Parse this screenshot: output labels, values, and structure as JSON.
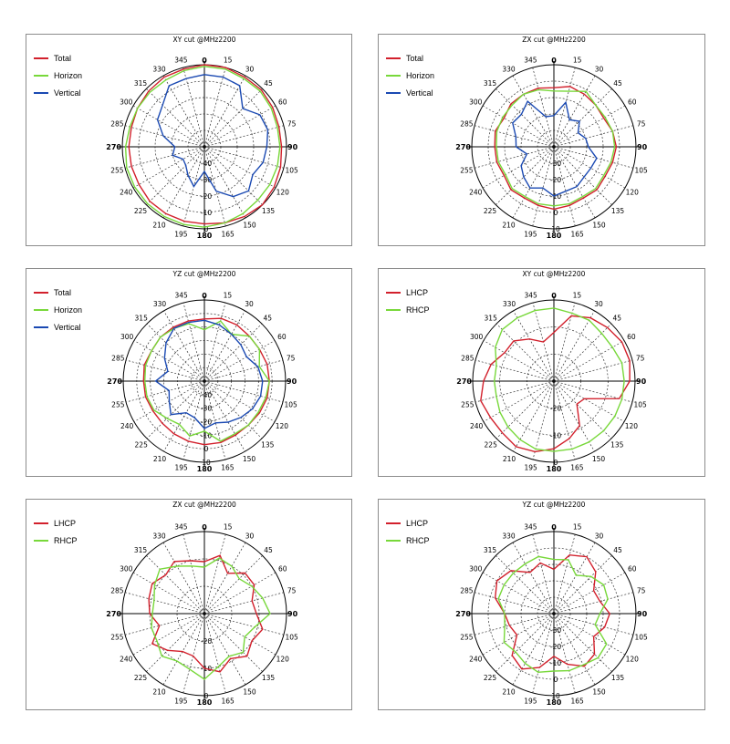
{
  "colors": {
    "Total": "#d2202c",
    "Horizon": "#78d83a",
    "Vertical": "#1a49b2",
    "LHCP": "#d2202c",
    "RHCP": "#78d83a"
  },
  "chart_data": [
    {
      "type": "polar-line",
      "title": "XY cut @MHz2200",
      "angle_labels": [
        "0",
        "15",
        "30",
        "45",
        "60",
        "75",
        "90",
        "105",
        "120",
        "135",
        "150",
        "165",
        "180",
        "195",
        "210",
        "225",
        "240",
        "255",
        "270",
        "285",
        "300",
        "315",
        "330",
        "345"
      ],
      "r_labels": [
        "-40",
        "-30",
        "-20",
        "-10",
        "0"
      ],
      "r_range": [
        -50,
        0
      ],
      "legend": [
        "Total",
        "Horizon",
        "Vertical"
      ],
      "angles": [
        0,
        15,
        30,
        45,
        60,
        75,
        90,
        105,
        120,
        135,
        150,
        165,
        180,
        195,
        210,
        225,
        240,
        255,
        270,
        285,
        300,
        315,
        330,
        345
      ],
      "series": [
        {
          "name": "Total",
          "values": [
            0,
            0,
            -1,
            -1,
            -2,
            -3,
            -3,
            -2,
            -1,
            0,
            -1,
            -2,
            -3,
            -3,
            -3,
            -3,
            -4,
            -4,
            -4,
            -4,
            -3,
            -2,
            -1,
            -1
          ]
        },
        {
          "name": "Horizon",
          "values": [
            -1,
            -1,
            -2,
            -2,
            -3,
            -4,
            -4,
            -4,
            -4,
            -4,
            -3,
            -2,
            -1,
            -1,
            -1,
            -1,
            -1,
            -1,
            -2,
            -3,
            -3,
            -3,
            -3,
            -2
          ]
        },
        {
          "name": "Vertical",
          "values": [
            -6,
            -6,
            -7,
            -17,
            -11,
            -10,
            -12,
            -13,
            -16,
            -12,
            -15,
            -22,
            -35,
            -25,
            -30,
            -34,
            -35,
            -30,
            -32,
            -24,
            -17,
            -14,
            -7,
            -7
          ]
        }
      ]
    },
    {
      "type": "polar-line",
      "title": "ZX cut @MHz2200",
      "angle_labels": [
        "0",
        "15",
        "30",
        "45",
        "60",
        "75",
        "90",
        "105",
        "120",
        "135",
        "150",
        "165",
        "180",
        "195",
        "210",
        "225",
        "240",
        "255",
        "270",
        "285",
        "300",
        "315",
        "330",
        "345"
      ],
      "r_labels": [
        "-30",
        "-20",
        "-10",
        "0",
        "10"
      ],
      "r_range": [
        -40,
        10
      ],
      "legend": [
        "Total",
        "Horizon",
        "Vertical"
      ],
      "angles": [
        0,
        15,
        30,
        45,
        60,
        75,
        90,
        105,
        120,
        135,
        150,
        165,
        180,
        195,
        210,
        225,
        240,
        255,
        270,
        285,
        300,
        315,
        330,
        345
      ],
      "series": [
        {
          "name": "Total",
          "values": [
            -4,
            -2,
            -3,
            -4,
            -5,
            -3,
            -2,
            -3,
            -4,
            -3,
            -4,
            -3,
            -2,
            -3,
            -4,
            -3,
            -5,
            -4,
            -4,
            -3,
            -5,
            -3,
            -3,
            -3
          ]
        },
        {
          "name": "Horizon",
          "values": [
            -6,
            -5,
            -1,
            -4,
            -4,
            -3,
            -3,
            -4,
            -5,
            -4,
            -5,
            -4,
            -4,
            -4,
            -5,
            -4,
            -6,
            -5,
            -5,
            -4,
            -4,
            -4,
            -3,
            -4
          ]
        },
        {
          "name": "Vertical",
          "values": [
            -21,
            -12,
            -21,
            -18,
            -23,
            -20,
            -19,
            -13,
            -14,
            -14,
            -12,
            -12,
            -10,
            -14,
            -11,
            -14,
            -17,
            -23,
            -17,
            -16,
            -11,
            -12,
            -8,
            -21
          ]
        }
      ]
    },
    {
      "type": "polar-line",
      "title": "YZ cut @MHz2200",
      "angle_labels": [
        "0",
        "15",
        "30",
        "45",
        "60",
        "75",
        "90",
        "105",
        "120",
        "135",
        "150",
        "165",
        "180",
        "195",
        "210",
        "225",
        "240",
        "255",
        "270",
        "285",
        "300",
        "315",
        "330",
        "345"
      ],
      "r_labels": [
        "-40",
        "-30",
        "-20",
        "-10",
        "0",
        "10"
      ],
      "r_range": [
        -50,
        10
      ],
      "legend": [
        "Total",
        "Horizon",
        "Vertical"
      ],
      "angles": [
        0,
        15,
        30,
        45,
        60,
        75,
        90,
        105,
        120,
        135,
        150,
        165,
        180,
        195,
        210,
        225,
        240,
        255,
        270,
        285,
        300,
        315,
        330,
        345
      ],
      "series": [
        {
          "name": "Total",
          "values": [
            -4,
            -2,
            -2,
            -3,
            -3,
            -2,
            -2,
            -2,
            -3,
            -4,
            -4,
            -3,
            -3,
            -4,
            -5,
            -6,
            -6,
            -5,
            -5,
            -4,
            -5,
            -4,
            -4,
            -4
          ]
        },
        {
          "name": "Horizon",
          "values": [
            -12,
            -4,
            -10,
            -3,
            -3,
            -8,
            -2,
            -3,
            -4,
            -4,
            -5,
            -4,
            -13,
            -8,
            -13,
            -11,
            -7,
            -6,
            -6,
            -5,
            -5,
            -4,
            -5,
            -6
          ]
        },
        {
          "name": "Vertical",
          "values": [
            -5,
            -7,
            -10,
            -12,
            -14,
            -9,
            -7,
            -7,
            -9,
            -12,
            -15,
            -18,
            -15,
            -22,
            -23,
            -15,
            -20,
            -23,
            -14,
            -22,
            -16,
            -10,
            -5,
            -5
          ]
        }
      ]
    },
    {
      "type": "polar-line",
      "title": "XY cut @MHz2200",
      "angle_labels": [
        "0",
        "15",
        "30",
        "45",
        "60",
        "75",
        "90",
        "105",
        "120",
        "135",
        "150",
        "165",
        "180",
        "195",
        "210",
        "225",
        "240",
        "255",
        "270",
        "285",
        "300",
        "315",
        "330",
        "345"
      ],
      "r_labels": [
        "-20",
        "-10",
        "0"
      ],
      "r_range": [
        -30,
        0
      ],
      "legend": [
        "LHCP",
        "RHCP"
      ],
      "angles": [
        0,
        15,
        30,
        45,
        60,
        75,
        90,
        105,
        120,
        135,
        150,
        165,
        180,
        195,
        210,
        225,
        240,
        255,
        270,
        285,
        300,
        315,
        330,
        345
      ],
      "series": [
        {
          "name": "LHCP",
          "values": [
            -12,
            -5,
            -3,
            -2,
            -1,
            -1,
            -2,
            -5,
            -17,
            -18,
            -11,
            -8,
            -5,
            -3,
            -2,
            -3,
            -3,
            -2,
            -4,
            -6,
            -9,
            -9,
            -12,
            -15
          ]
        },
        {
          "name": "RHCP",
          "values": [
            -3,
            -4,
            -4,
            -5,
            -5,
            -4,
            -4,
            -4,
            -4,
            -4,
            -4,
            -4,
            -4,
            -4,
            -5,
            -6,
            -7,
            -8,
            -8,
            -8,
            -5,
            -3,
            -3,
            -3
          ]
        }
      ]
    },
    {
      "type": "polar-line",
      "title": "ZX cut @MHz2200",
      "angle_labels": [
        "0",
        "15",
        "30",
        "45",
        "60",
        "75",
        "90",
        "105",
        "120",
        "135",
        "150",
        "165",
        "180",
        "195",
        "210",
        "225",
        "240",
        "255",
        "270",
        "285",
        "300",
        "315",
        "330",
        "345"
      ],
      "r_labels": [
        "-20",
        "-10",
        "0"
      ],
      "r_range": [
        -30,
        0
      ],
      "legend": [
        "LHCP",
        "RHCP"
      ],
      "angles": [
        0,
        15,
        30,
        45,
        60,
        75,
        90,
        105,
        120,
        135,
        150,
        165,
        180,
        195,
        210,
        225,
        240,
        255,
        270,
        285,
        300,
        315,
        330,
        345
      ],
      "series": [
        {
          "name": "LHCP",
          "values": [
            -11,
            -8,
            -13,
            -9,
            -9,
            -12,
            -11,
            -8,
            -10,
            -8,
            -11,
            -8,
            -10,
            -14,
            -14,
            -11,
            -8,
            -13,
            -10,
            -9,
            -8,
            -10,
            -8,
            -10
          ]
        },
        {
          "name": "RHCP",
          "values": [
            -13,
            -9,
            -10,
            -12,
            -10,
            -8,
            -6,
            -11,
            -13,
            -10,
            -12,
            -10,
            -6,
            -9,
            -10,
            -8,
            -10,
            -10,
            -11,
            -11,
            -9,
            -7,
            -10,
            -12
          ]
        }
      ]
    },
    {
      "type": "polar-line",
      "title": "YZ cut @MHz2200",
      "angle_labels": [
        "0",
        "15",
        "30",
        "45",
        "60",
        "75",
        "90",
        "105",
        "120",
        "135",
        "150",
        "165",
        "180",
        "195",
        "210",
        "225",
        "240",
        "255",
        "270",
        "285",
        "300",
        "315",
        "330",
        "345"
      ],
      "r_labels": [
        "-30",
        "-20",
        "-10",
        "0",
        "10"
      ],
      "r_range": [
        -40,
        10
      ],
      "legend": [
        "LHCP",
        "RHCP"
      ],
      "angles": [
        0,
        15,
        30,
        45,
        60,
        75,
        90,
        105,
        120,
        135,
        150,
        165,
        180,
        195,
        210,
        225,
        240,
        255,
        270,
        285,
        300,
        315,
        330,
        345
      ],
      "series": [
        {
          "name": "LHCP",
          "values": [
            -13,
            -3,
            0,
            -4,
            -12,
            -11,
            -6,
            -8,
            -12,
            -5,
            -3,
            -8,
            -14,
            -6,
            -1,
            -4,
            -14,
            -12,
            -10,
            -3,
            0,
            -3,
            -11,
            -8
          ]
        },
        {
          "name": "RHCP",
          "values": [
            -7,
            -6,
            -13,
            -8,
            -5,
            -6,
            -12,
            -14,
            -3,
            -2,
            -4,
            -4,
            -5,
            -3,
            -5,
            -7,
            -5,
            -9,
            -10,
            -5,
            -5,
            -5,
            -5,
            -4
          ]
        }
      ]
    }
  ]
}
